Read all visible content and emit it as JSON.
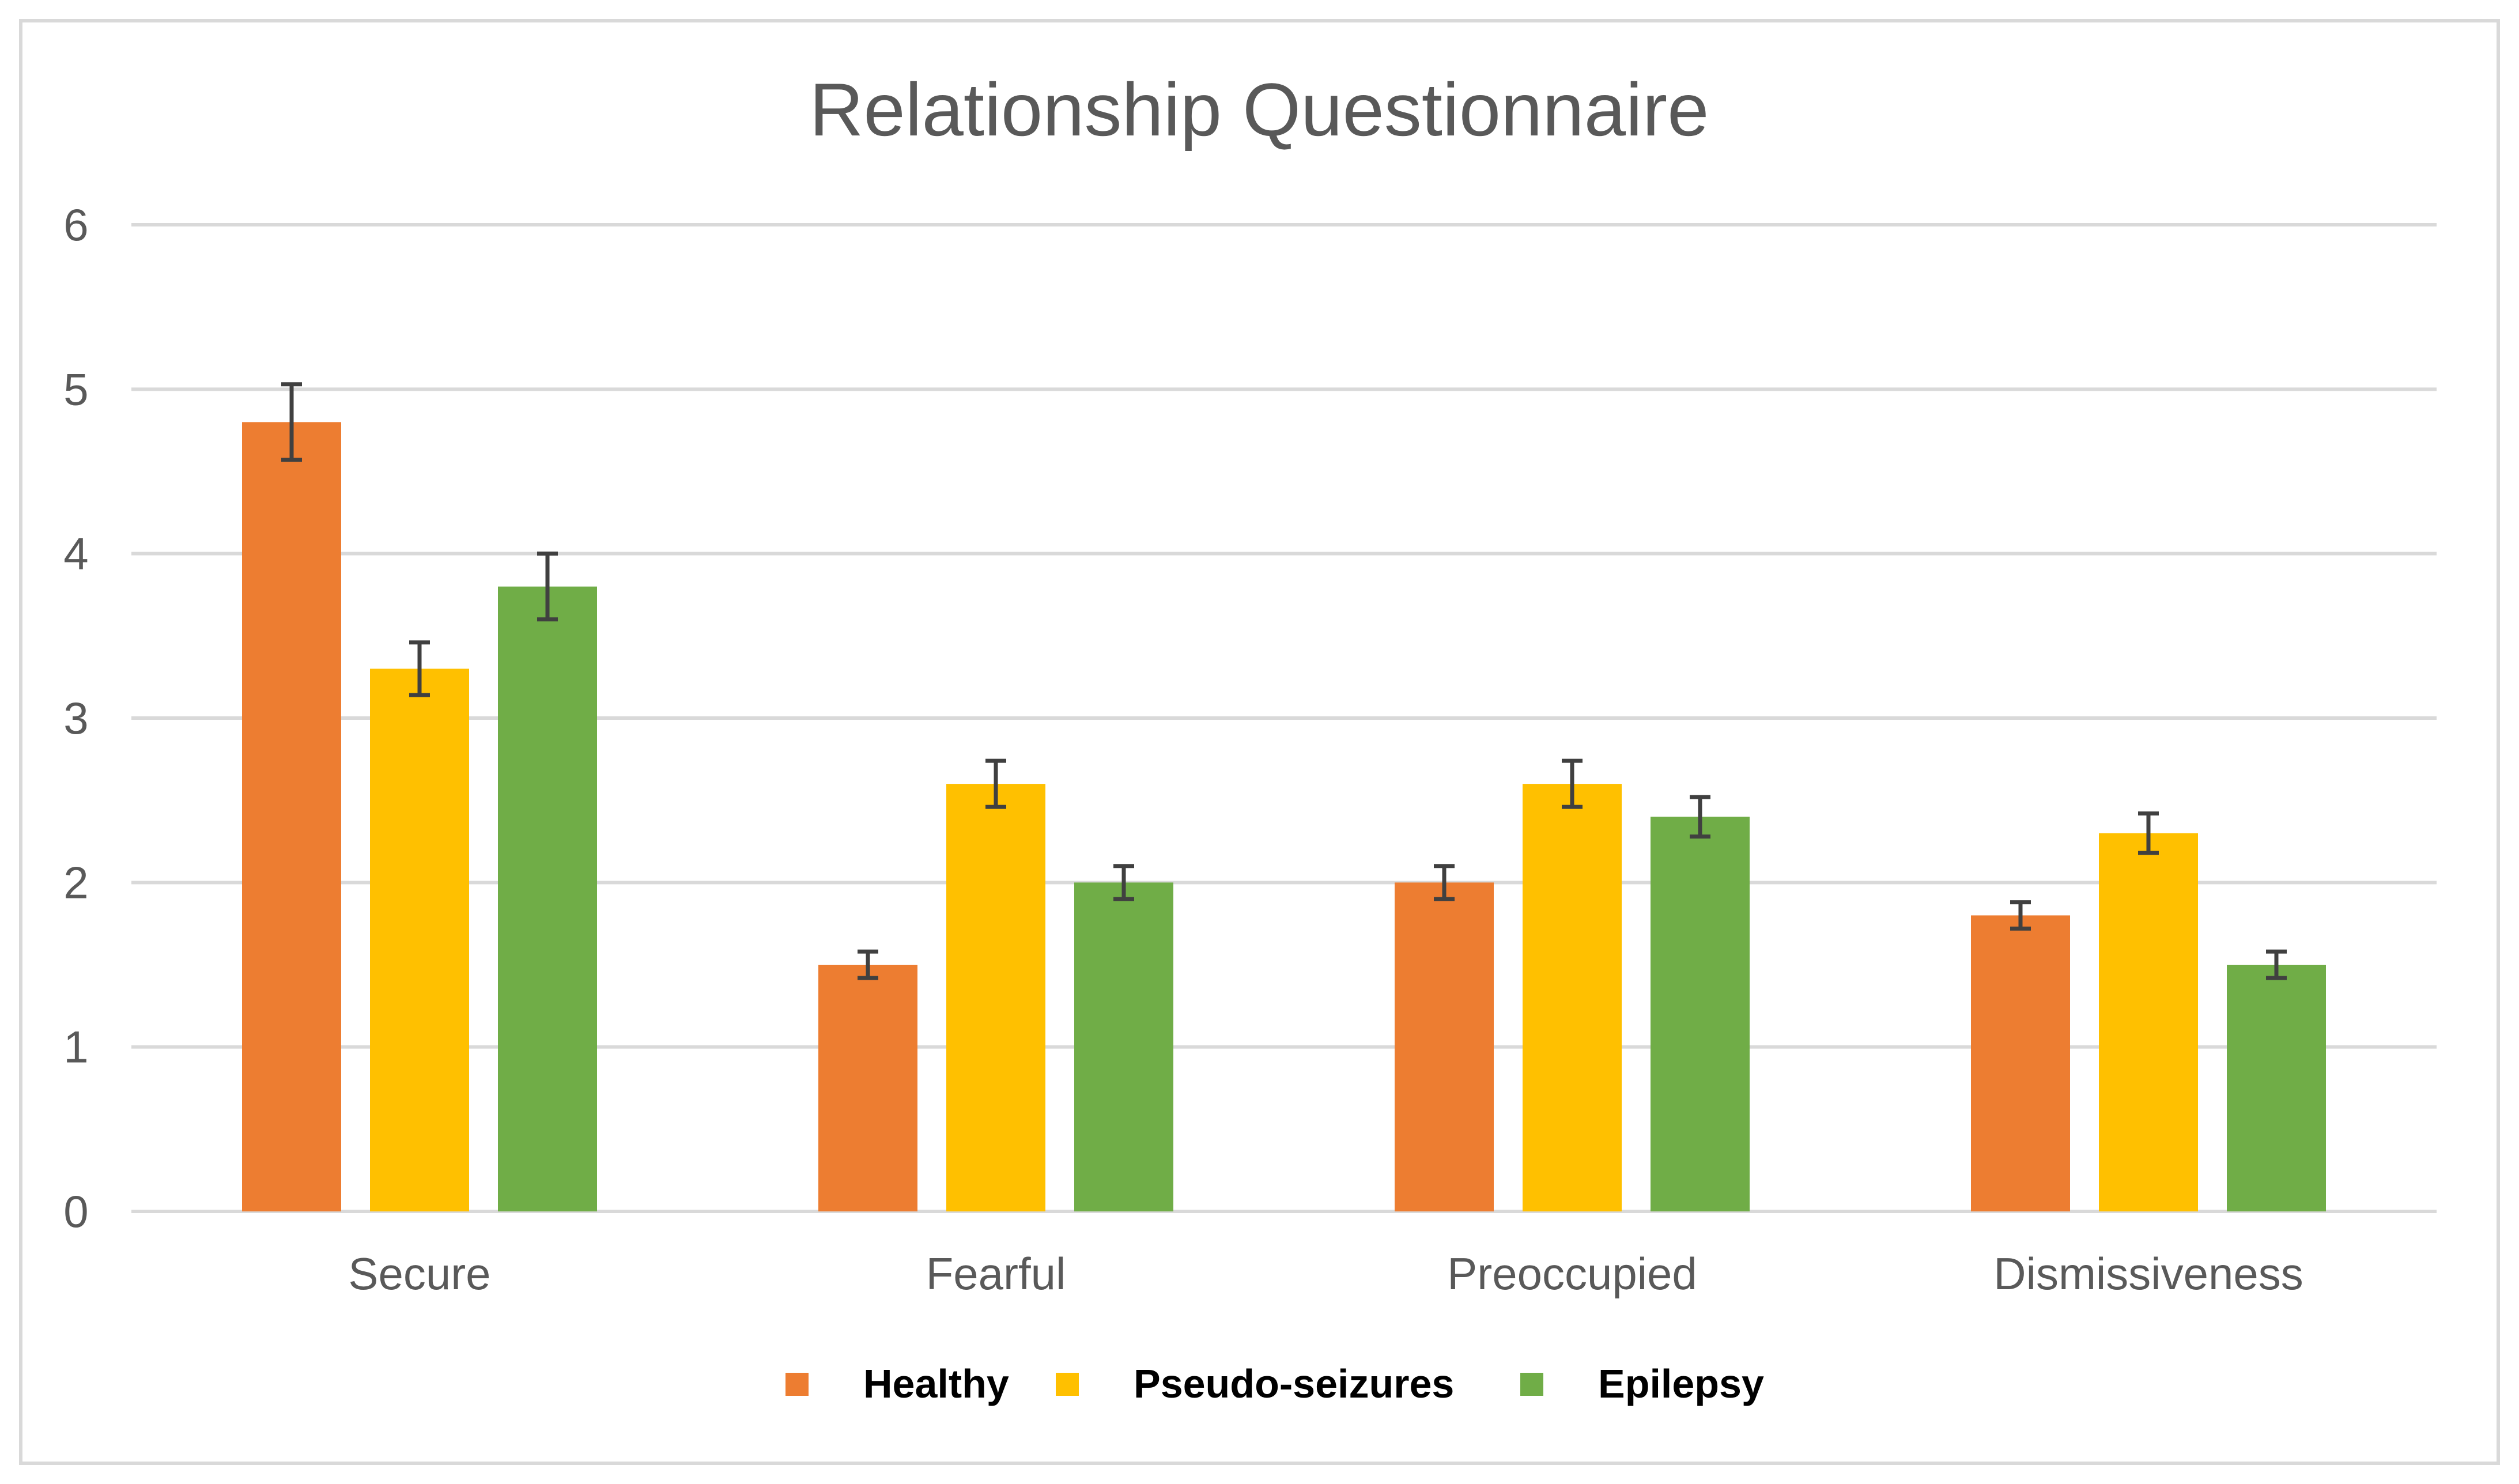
{
  "chart_data": {
    "type": "bar",
    "title": "Relationship Questionnaire",
    "xlabel": "",
    "ylabel": "",
    "ylim": [
      0,
      6
    ],
    "yticks": [
      "0",
      "1",
      "2",
      "3",
      "4",
      "5",
      "6"
    ],
    "grid": true,
    "legend_position": "bottom",
    "categories": [
      "Secure",
      "Fearful",
      "Preoccupied",
      "Dismissiveness"
    ],
    "series": [
      {
        "name": "Healthy",
        "color": "#ed7d31",
        "values": [
          4.8,
          1.5,
          2.0,
          1.8
        ],
        "errors": [
          0.23,
          0.08,
          0.1,
          0.08
        ]
      },
      {
        "name": "Pseudo-seizures",
        "color": "#ffc000",
        "values": [
          3.3,
          2.6,
          2.6,
          2.3
        ],
        "errors": [
          0.16,
          0.14,
          0.14,
          0.12
        ]
      },
      {
        "name": "Epilepsy",
        "color": "#70ad47",
        "values": [
          3.8,
          2.0,
          2.4,
          1.5
        ],
        "errors": [
          0.2,
          0.1,
          0.12,
          0.08
        ]
      }
    ]
  }
}
